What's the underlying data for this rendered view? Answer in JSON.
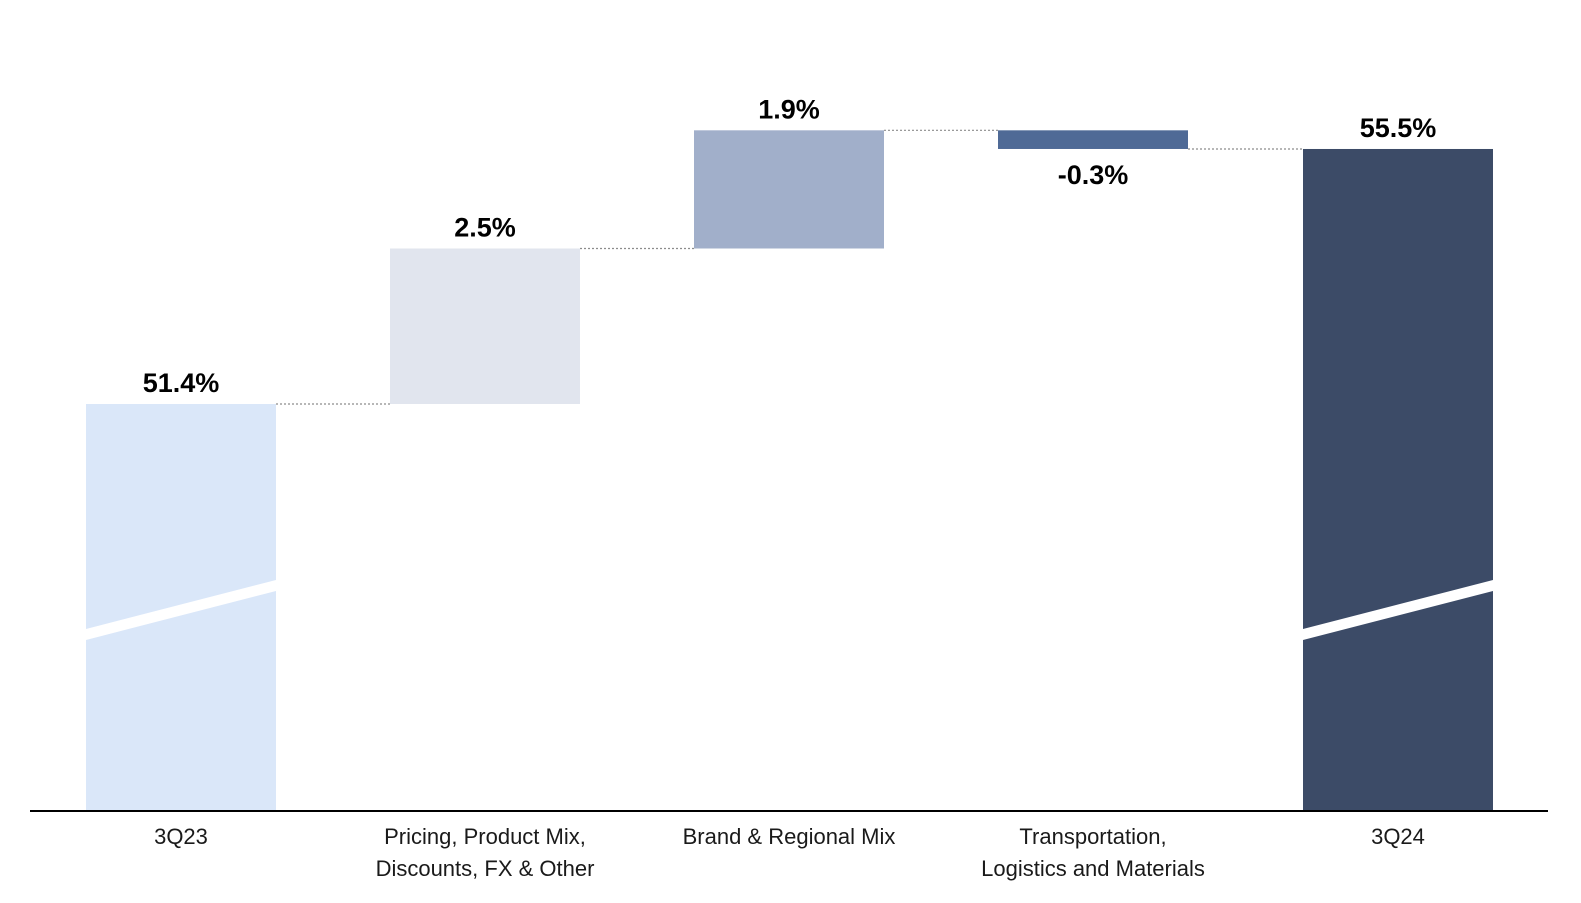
{
  "chart_data": {
    "type": "waterfall",
    "categories": [
      [
        "3Q23"
      ],
      [
        "Pricing, Product Mix,",
        "Discounts, FX & Other"
      ],
      [
        "Brand & Regional Mix"
      ],
      [
        "Transportation,",
        "Logistics and Materials"
      ],
      [
        "3Q24"
      ]
    ],
    "values": [
      51.4,
      2.5,
      1.9,
      -0.3,
      55.5
    ],
    "kinds": [
      "total",
      "delta",
      "delta",
      "delta",
      "total"
    ],
    "value_labels": [
      "51.4%",
      "2.5%",
      "1.9%",
      "-0.3%",
      "55.5%"
    ],
    "colors": [
      "#dae7f9",
      "#e1e5ee",
      "#a1afca",
      "#4f6a96",
      "#3c4b67"
    ],
    "axis_break": true,
    "ylim_visible": [
      49.0,
      56.0
    ]
  }
}
